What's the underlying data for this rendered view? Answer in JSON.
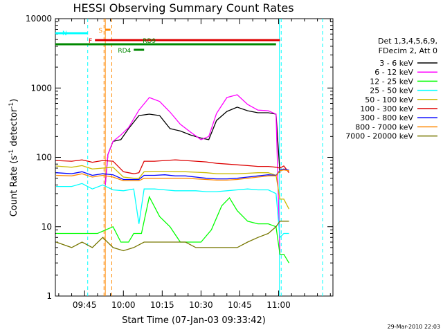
{
  "chart_data": {
    "type": "line",
    "title": "HESSI Observing Summary Count Rates",
    "ylabel_main": "Count Rate (s",
    "ylabel_sup": "-1",
    "ylabel_mid": " detector",
    "ylabel_sup2": "-1",
    "ylabel_end": ")",
    "xlabel": "Start Time (07-Jan-03 09:33:42)",
    "timestamp": "29-Mar-2010 22:03",
    "yscale": "log",
    "ylim": [
      1,
      10000
    ],
    "xlim_minutes": [
      33.7,
      141.0
    ],
    "x_ticks": [
      {
        "min": 45,
        "label": "09:45"
      },
      {
        "min": 60,
        "label": "10:00"
      },
      {
        "min": 75,
        "label": "10:15"
      },
      {
        "min": 90,
        "label": "10:30"
      },
      {
        "min": 105,
        "label": "10:45"
      },
      {
        "min": 120,
        "label": "11:00"
      }
    ],
    "y_ticks": [
      {
        "v": 1,
        "label": "1"
      },
      {
        "v": 10,
        "label": "10"
      },
      {
        "v": 100,
        "label": "100"
      },
      {
        "v": 1000,
        "label": "1000"
      },
      {
        "v": 10000,
        "label": "10000"
      }
    ],
    "legend_header": [
      "Det 1,3,4,5,6,9,",
      "FDecim 2, Att 0"
    ],
    "series": [
      {
        "name": "3 - 6 keV",
        "color": "#000000",
        "points": [
          [
            53,
            40
          ],
          [
            54,
            110
          ],
          [
            56,
            170
          ],
          [
            59,
            180
          ],
          [
            62,
            260
          ],
          [
            66,
            400
          ],
          [
            70,
            420
          ],
          [
            74,
            400
          ],
          [
            78,
            260
          ],
          [
            82,
            240
          ],
          [
            86,
            210
          ],
          [
            90,
            190
          ],
          [
            93,
            180
          ],
          [
            96,
            340
          ],
          [
            100,
            460
          ],
          [
            104,
            530
          ],
          [
            108,
            470
          ],
          [
            112,
            440
          ],
          [
            116,
            440
          ],
          [
            119,
            420
          ],
          [
            120.5,
            60
          ]
        ]
      },
      {
        "name": "6 - 12 keV",
        "color": "#ff00ff",
        "points": [
          [
            53,
            40
          ],
          [
            54,
            110
          ],
          [
            56,
            170
          ],
          [
            59,
            210
          ],
          [
            62,
            270
          ],
          [
            66,
            480
          ],
          [
            70,
            730
          ],
          [
            74,
            640
          ],
          [
            78,
            450
          ],
          [
            82,
            300
          ],
          [
            86,
            230
          ],
          [
            90,
            180
          ],
          [
            93,
            200
          ],
          [
            96,
            430
          ],
          [
            100,
            730
          ],
          [
            104,
            800
          ],
          [
            108,
            580
          ],
          [
            112,
            480
          ],
          [
            116,
            470
          ],
          [
            119,
            420
          ],
          [
            120.5,
            4
          ],
          [
            122,
            4
          ]
        ]
      },
      {
        "name": "12 - 25 keV",
        "color": "#00ff00",
        "points": [
          [
            34,
            8
          ],
          [
            40,
            8
          ],
          [
            44,
            8
          ],
          [
            50,
            8
          ],
          [
            56,
            10
          ],
          [
            59,
            6
          ],
          [
            62,
            6
          ],
          [
            64,
            8
          ],
          [
            67,
            8
          ],
          [
            70,
            27
          ],
          [
            74,
            14
          ],
          [
            78,
            10
          ],
          [
            82,
            6
          ],
          [
            86,
            6
          ],
          [
            90,
            6
          ],
          [
            94,
            9
          ],
          [
            98,
            20
          ],
          [
            101,
            26
          ],
          [
            104,
            17
          ],
          [
            108,
            12
          ],
          [
            112,
            11
          ],
          [
            116,
            11
          ],
          [
            119,
            10
          ],
          [
            120.5,
            4
          ],
          [
            122,
            4
          ],
          [
            124,
            3
          ]
        ]
      },
      {
        "name": "25 - 50 keV",
        "color": "#00ffff",
        "points": [
          [
            34,
            38
          ],
          [
            40,
            38
          ],
          [
            44,
            42
          ],
          [
            48,
            35
          ],
          [
            52,
            40
          ],
          [
            56,
            34
          ],
          [
            60,
            33
          ],
          [
            64,
            35
          ],
          [
            66,
            11
          ],
          [
            68,
            35
          ],
          [
            72,
            35
          ],
          [
            76,
            34
          ],
          [
            80,
            33
          ],
          [
            84,
            33
          ],
          [
            88,
            33
          ],
          [
            92,
            32
          ],
          [
            96,
            32
          ],
          [
            100,
            33
          ],
          [
            104,
            34
          ],
          [
            108,
            35
          ],
          [
            112,
            34
          ],
          [
            116,
            34
          ],
          [
            119,
            30
          ],
          [
            120.5,
            7
          ],
          [
            122,
            8
          ],
          [
            124,
            8
          ]
        ]
      },
      {
        "name": "50 - 100 keV",
        "color": "#ccbb00",
        "points": [
          [
            34,
            75
          ],
          [
            40,
            72
          ],
          [
            44,
            76
          ],
          [
            48,
            68
          ],
          [
            52,
            70
          ],
          [
            56,
            72
          ],
          [
            60,
            52
          ],
          [
            64,
            50
          ],
          [
            66,
            50
          ],
          [
            68,
            62
          ],
          [
            72,
            63
          ],
          [
            76,
            63
          ],
          [
            80,
            62
          ],
          [
            84,
            62
          ],
          [
            88,
            61
          ],
          [
            92,
            60
          ],
          [
            96,
            58
          ],
          [
            100,
            58
          ],
          [
            104,
            58
          ],
          [
            108,
            59
          ],
          [
            112,
            60
          ],
          [
            116,
            60
          ],
          [
            119,
            55
          ],
          [
            120.5,
            25
          ],
          [
            122,
            25
          ],
          [
            124,
            18
          ]
        ]
      },
      {
        "name": "100 - 300 keV",
        "color": "#dd0000",
        "points": [
          [
            34,
            90
          ],
          [
            40,
            88
          ],
          [
            44,
            92
          ],
          [
            48,
            85
          ],
          [
            52,
            90
          ],
          [
            56,
            88
          ],
          [
            60,
            62
          ],
          [
            64,
            58
          ],
          [
            66,
            60
          ],
          [
            68,
            88
          ],
          [
            72,
            88
          ],
          [
            76,
            90
          ],
          [
            80,
            92
          ],
          [
            84,
            90
          ],
          [
            88,
            88
          ],
          [
            92,
            86
          ],
          [
            96,
            82
          ],
          [
            100,
            80
          ],
          [
            104,
            78
          ],
          [
            108,
            76
          ],
          [
            112,
            74
          ],
          [
            116,
            74
          ],
          [
            119,
            72
          ],
          [
            120.5,
            70
          ],
          [
            122,
            75
          ],
          [
            124,
            60
          ]
        ]
      },
      {
        "name": "300 - 800 keV",
        "color": "#0000ff",
        "points": [
          [
            34,
            60
          ],
          [
            40,
            58
          ],
          [
            44,
            62
          ],
          [
            48,
            55
          ],
          [
            52,
            58
          ],
          [
            56,
            56
          ],
          [
            60,
            48
          ],
          [
            64,
            48
          ],
          [
            66,
            48
          ],
          [
            68,
            55
          ],
          [
            72,
            55
          ],
          [
            76,
            56
          ],
          [
            80,
            54
          ],
          [
            84,
            54
          ],
          [
            88,
            52
          ],
          [
            92,
            50
          ],
          [
            96,
            49
          ],
          [
            100,
            49
          ],
          [
            104,
            50
          ],
          [
            108,
            52
          ],
          [
            112,
            54
          ],
          [
            116,
            56
          ],
          [
            119,
            55
          ],
          [
            120.5,
            65
          ],
          [
            122,
            68
          ],
          [
            124,
            65
          ]
        ]
      },
      {
        "name": "800 - 7000 keV",
        "color": "#ff8800",
        "points": [
          [
            34,
            55
          ],
          [
            40,
            54
          ],
          [
            44,
            58
          ],
          [
            48,
            52
          ],
          [
            52,
            55
          ],
          [
            56,
            52
          ],
          [
            60,
            46
          ],
          [
            64,
            46
          ],
          [
            66,
            46
          ],
          [
            68,
            50
          ],
          [
            72,
            50
          ],
          [
            76,
            50
          ],
          [
            80,
            50
          ],
          [
            84,
            50
          ],
          [
            88,
            49
          ],
          [
            92,
            48
          ],
          [
            96,
            47
          ],
          [
            100,
            47
          ],
          [
            104,
            48
          ],
          [
            108,
            50
          ],
          [
            112,
            52
          ],
          [
            116,
            54
          ],
          [
            119,
            54
          ],
          [
            120.5,
            64
          ],
          [
            122,
            66
          ],
          [
            124,
            64
          ]
        ]
      },
      {
        "name": "7000 - 20000 keV",
        "color": "#777700",
        "points": [
          [
            34,
            6
          ],
          [
            40,
            5
          ],
          [
            44,
            6
          ],
          [
            48,
            5
          ],
          [
            52,
            7
          ],
          [
            56,
            5
          ],
          [
            60,
            4.5
          ],
          [
            64,
            5
          ],
          [
            68,
            6
          ],
          [
            72,
            6
          ],
          [
            76,
            6
          ],
          [
            80,
            6
          ],
          [
            84,
            6
          ],
          [
            88,
            5
          ],
          [
            92,
            5
          ],
          [
            96,
            5
          ],
          [
            100,
            5
          ],
          [
            104,
            5
          ],
          [
            108,
            6
          ],
          [
            112,
            7
          ],
          [
            116,
            8
          ],
          [
            119,
            10
          ],
          [
            120.5,
            12
          ],
          [
            122,
            12
          ],
          [
            124,
            12
          ]
        ]
      }
    ],
    "flag_bars": [
      {
        "label": "N",
        "color": "#00ffff",
        "y": 48,
        "x1min": 33.7,
        "x2min": 46.2
      },
      {
        "label": "S",
        "color": "#ff8800",
        "y": 43,
        "x1min": 53.0,
        "x2min": 55.0
      },
      {
        "label": "F",
        "color": "#dd0000",
        "y": 58,
        "x1min": 49.0,
        "x2min": 120.5
      },
      {
        "label": "RD9",
        "color": "#008800",
        "y": 64,
        "x1min": 33.7,
        "x2min": 119.0
      },
      {
        "label": "RD4",
        "color": "#008800",
        "y": 72,
        "x1min": 64.0,
        "x2min": 68.0
      }
    ]
  }
}
